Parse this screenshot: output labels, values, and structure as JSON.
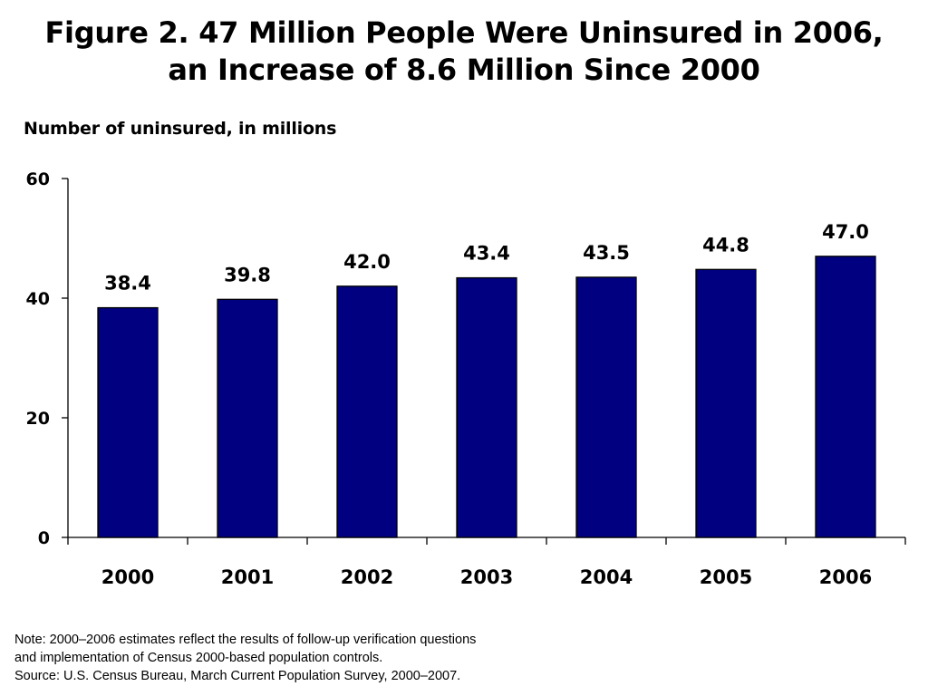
{
  "chart_data": {
    "type": "bar",
    "title": [
      "Figure 2. 47 Million People Were Uninsured in 2006,",
      "an Increase of 8.6 Million Since 2000"
    ],
    "ylabel": "Number of uninsured, in millions",
    "xlabel": "",
    "categories": [
      "2000",
      "2001",
      "2002",
      "2003",
      "2004",
      "2005",
      "2006"
    ],
    "values": [
      38.4,
      39.8,
      42.0,
      43.4,
      43.5,
      44.8,
      47.0
    ],
    "data_labels": [
      "38.4",
      "39.8",
      "42.0",
      "43.4",
      "43.5",
      "44.8",
      "47.0"
    ],
    "yticks": [
      0,
      20,
      40,
      60
    ],
    "ylim": [
      0,
      60
    ],
    "grid": false,
    "legend": "none",
    "bar_color": "#000080"
  },
  "notes": {
    "line1": "Note: 2000–2006 estimates reflect the results of follow-up verification questions",
    "line2": "and implementation of Census 2000-based population controls.",
    "line3": "Source: U.S. Census Bureau, March Current Population Survey, 2000–2007."
  }
}
